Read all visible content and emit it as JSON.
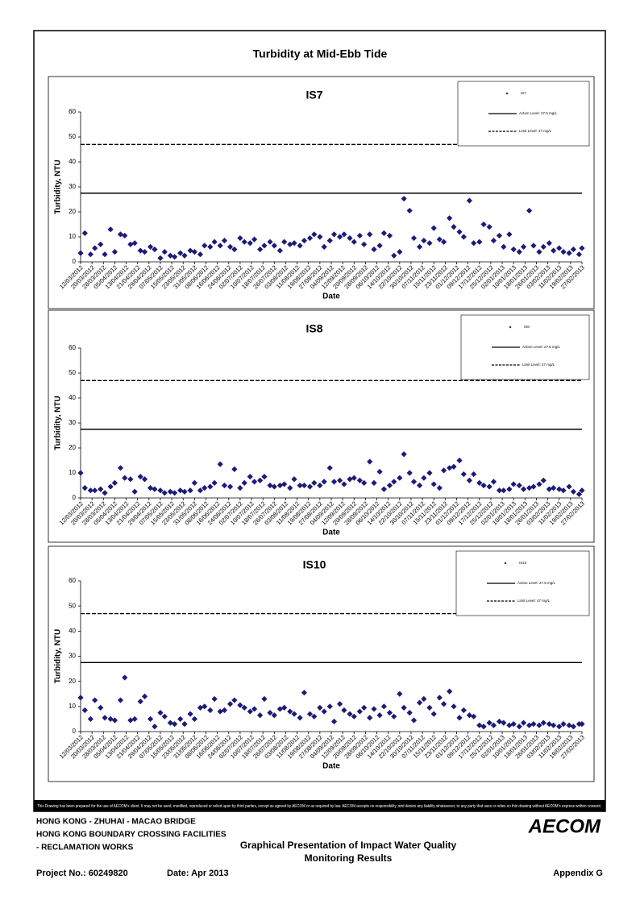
{
  "document": {
    "title": "Turbidity at Mid-Ebb Tide",
    "disclaimer": "This Drawing has been prepared for the use of AECOM's client. It may not be used, modified, reproduced or relied upon by third parties, except as agreed by AECOM or as required by law. AECOM accepts no responsibility, and denies any liability whatsoever, to any party that uses or relies on this drawing without AECOM's express written consent.",
    "project_lines": [
      "HONG KONG - ZHUHAI - MACAO BRIDGE",
      "HONG KONG BOUNDARY CROSSING FACILITIES",
      "- RECLAMATION WORKS"
    ],
    "description": [
      "Graphical Presentation of Impact Water Quality",
      "Monitoring Results"
    ],
    "project_no": "Project No.: 60249820",
    "date": "Date: Apr 2013",
    "appendix": "Appendix G",
    "logo": "AECOM"
  },
  "chart_data": [
    {
      "type": "scatter",
      "title": "IS7",
      "x_label": "Date",
      "y_label": "Turbidity, NTU",
      "xlim": [
        "12/03/2012",
        "27/02/2013"
      ],
      "ylim": [
        0,
        60
      ],
      "yticks": [
        0,
        10,
        20,
        30,
        40,
        50,
        60
      ],
      "xticks": [
        "12/03/2012",
        "20/03/2012",
        "28/03/2012",
        "05/04/2012",
        "13/04/2012",
        "21/04/2012",
        "29/04/2012",
        "07/05/2012",
        "15/05/2012",
        "23/05/2012",
        "31/05/2012",
        "08/06/2012",
        "16/06/2012",
        "24/06/2012",
        "02/07/2012",
        "10/07/2012",
        "18/07/2012",
        "26/07/2012",
        "03/08/2012",
        "11/08/2012",
        "19/08/2012",
        "27/08/2012",
        "04/09/2012",
        "12/09/2012",
        "20/09/2012",
        "28/09/2012",
        "06/10/2012",
        "14/10/2012",
        "22/10/2012",
        "30/10/2012",
        "07/11/2012",
        "15/11/2012",
        "23/11/2012",
        "01/12/2012",
        "09/12/2012",
        "17/12/2012",
        "25/12/2012",
        "02/01/2013",
        "10/01/2013",
        "18/01/2013",
        "26/01/2013",
        "03/02/2013",
        "11/02/2013",
        "19/02/2013",
        "27/02/2013"
      ],
      "x": [
        "12/03/2012",
        "15/03/2012",
        "19/03/2012",
        "22/03/2012",
        "26/03/2012",
        "29/03/2012",
        "02/04/2012",
        "05/04/2012",
        "09/04/2012",
        "12/04/2012",
        "16/04/2012",
        "19/04/2012",
        "23/04/2012",
        "26/04/2012",
        "30/04/2012",
        "03/05/2012",
        "07/05/2012",
        "10/05/2012",
        "14/05/2012",
        "17/05/2012",
        "21/05/2012",
        "24/05/2012",
        "28/05/2012",
        "31/05/2012",
        "04/06/2012",
        "07/06/2012",
        "11/06/2012",
        "14/06/2012",
        "18/06/2012",
        "21/06/2012",
        "25/06/2012",
        "28/06/2012",
        "02/07/2012",
        "05/07/2012",
        "09/07/2012",
        "12/07/2012",
        "16/07/2012",
        "19/07/2012",
        "23/07/2012",
        "26/07/2012",
        "30/07/2012",
        "02/08/2012",
        "06/08/2012",
        "09/08/2012",
        "13/08/2012",
        "16/08/2012",
        "20/08/2012",
        "23/08/2012",
        "27/08/2012",
        "30/08/2012",
        "03/09/2012",
        "06/09/2012",
        "10/09/2012",
        "13/09/2012",
        "17/09/2012",
        "20/09/2012",
        "24/09/2012",
        "27/09/2012",
        "01/10/2012",
        "04/10/2012",
        "08/10/2012",
        "11/10/2012",
        "15/10/2012",
        "18/10/2012",
        "22/10/2012",
        "25/10/2012",
        "29/10/2012",
        "01/11/2012",
        "05/11/2012",
        "08/11/2012",
        "12/11/2012",
        "15/11/2012",
        "19/11/2012",
        "22/11/2012",
        "26/11/2012",
        "29/11/2012",
        "03/12/2012",
        "06/12/2012",
        "10/12/2012",
        "13/12/2012",
        "17/12/2012",
        "20/12/2012",
        "24/12/2012",
        "27/12/2012",
        "31/12/2012",
        "03/01/2013",
        "07/01/2013",
        "10/01/2013",
        "14/01/2013",
        "17/01/2013",
        "21/01/2013",
        "24/01/2013",
        "28/01/2013",
        "31/01/2013",
        "04/02/2013",
        "07/02/2013",
        "11/02/2013",
        "14/02/2013",
        "18/02/2013",
        "21/02/2013",
        "25/02/2013",
        "27/02/2013"
      ],
      "series": [
        {
          "name": "IS7",
          "color": "#1c1c78",
          "values": [
            3.5,
            11.5,
            3,
            5.5,
            7,
            3,
            13,
            4,
            11,
            10.5,
            7,
            7.5,
            4.5,
            4,
            6,
            5,
            1.5,
            4,
            2.5,
            2,
            3.5,
            2.5,
            4.5,
            4,
            3,
            6.5,
            6,
            8,
            6.5,
            8.5,
            6,
            5,
            9.5,
            8,
            7.5,
            9,
            5,
            6.5,
            8,
            6.5,
            4.5,
            8,
            7,
            7.5,
            6.5,
            8.5,
            9.5,
            11,
            10,
            6,
            8.5,
            11,
            10,
            11,
            9.5,
            8,
            10.5,
            7,
            11,
            5,
            6.5,
            11.5,
            10.5,
            2.5,
            4,
            25.3,
            20.5,
            9.5,
            6,
            8.5,
            7.5,
            13.5,
            9,
            8,
            17.5,
            14,
            12,
            10,
            24.5,
            7.5,
            8,
            15,
            14,
            8.5,
            10.5,
            6,
            11,
            5,
            4,
            6,
            20.5,
            6.5,
            4,
            6,
            7.5,
            4.5,
            5.5,
            4,
            3.5,
            5,
            3,
            5.5
          ]
        }
      ],
      "reference_lines": [
        {
          "name": "Action Level: 27.5 mg/L",
          "value": 27.5,
          "style": "solid"
        },
        {
          "name": "Limit Level: 47 mg/L",
          "value": 47,
          "style": "dashed"
        }
      ]
    },
    {
      "type": "scatter",
      "title": "IS8",
      "x_label": "Date",
      "y_label": "Turbidity, NTU",
      "xlim": [
        "12/03/2012",
        "27/02/2013"
      ],
      "ylim": [
        0,
        60
      ],
      "yticks": [
        0,
        10,
        20,
        30,
        40,
        50,
        60
      ],
      "xticks": [
        "12/03/2012",
        "20/03/2012",
        "28/03/2012",
        "05/04/2012",
        "13/04/2012",
        "21/04/2012",
        "29/04/2012",
        "07/05/2012",
        "15/05/2012",
        "23/05/2012",
        "31/05/2012",
        "08/06/2012",
        "16/06/2012",
        "24/06/2012",
        "02/07/2012",
        "10/07/2012",
        "18/07/2012",
        "26/07/2012",
        "03/08/2012",
        "11/08/2012",
        "19/08/2012",
        "27/08/2012",
        "04/09/2012",
        "12/09/2012",
        "20/09/2012",
        "28/09/2012",
        "06/10/2012",
        "14/10/2012",
        "22/10/2012",
        "30/10/2012",
        "07/11/2012",
        "15/11/2012",
        "23/11/2012",
        "01/12/2012",
        "09/12/2012",
        "17/12/2012",
        "25/12/2012",
        "02/01/2013",
        "10/01/2013",
        "18/01/2013",
        "26/01/2013",
        "03/02/2013",
        "11/02/2013",
        "19/02/2013",
        "27/02/2013"
      ],
      "x": [
        "12/03/2012",
        "15/03/2012",
        "19/03/2012",
        "22/03/2012",
        "26/03/2012",
        "29/03/2012",
        "02/04/2012",
        "05/04/2012",
        "09/04/2012",
        "12/04/2012",
        "16/04/2012",
        "19/04/2012",
        "23/04/2012",
        "26/04/2012",
        "30/04/2012",
        "03/05/2012",
        "07/05/2012",
        "10/05/2012",
        "14/05/2012",
        "17/05/2012",
        "21/05/2012",
        "24/05/2012",
        "28/05/2012",
        "31/05/2012",
        "04/06/2012",
        "07/06/2012",
        "11/06/2012",
        "14/06/2012",
        "18/06/2012",
        "21/06/2012",
        "25/06/2012",
        "28/06/2012",
        "02/07/2012",
        "05/07/2012",
        "09/07/2012",
        "12/07/2012",
        "16/07/2012",
        "19/07/2012",
        "23/07/2012",
        "26/07/2012",
        "30/07/2012",
        "02/08/2012",
        "06/08/2012",
        "09/08/2012",
        "13/08/2012",
        "16/08/2012",
        "20/08/2012",
        "23/08/2012",
        "27/08/2012",
        "30/08/2012",
        "03/09/2012",
        "06/09/2012",
        "10/09/2012",
        "13/09/2012",
        "17/09/2012",
        "20/09/2012",
        "24/09/2012",
        "27/09/2012",
        "01/10/2012",
        "04/10/2012",
        "08/10/2012",
        "11/10/2012",
        "15/10/2012",
        "18/10/2012",
        "22/10/2012",
        "25/10/2012",
        "29/10/2012",
        "01/11/2012",
        "05/11/2012",
        "08/11/2012",
        "12/11/2012",
        "15/11/2012",
        "19/11/2012",
        "22/11/2012",
        "26/11/2012",
        "29/11/2012",
        "03/12/2012",
        "06/12/2012",
        "10/12/2012",
        "13/12/2012",
        "17/12/2012",
        "20/12/2012",
        "24/12/2012",
        "27/12/2012",
        "31/12/2012",
        "03/01/2013",
        "07/01/2013",
        "10/01/2013",
        "14/01/2013",
        "17/01/2013",
        "21/01/2013",
        "24/01/2013",
        "28/01/2013",
        "31/01/2013",
        "04/02/2013",
        "07/02/2013",
        "11/02/2013",
        "14/02/2013",
        "18/02/2013",
        "21/02/2013",
        "25/02/2013",
        "27/02/2013"
      ],
      "series": [
        {
          "name": "IS8",
          "color": "#1c1c78",
          "values": [
            10,
            4,
            3,
            3,
            3.5,
            2,
            4.5,
            6,
            12,
            8,
            7.5,
            2.5,
            8.5,
            7.5,
            4,
            3.5,
            3,
            2,
            2.5,
            2,
            3,
            2.5,
            3,
            6,
            3,
            4,
            4.5,
            6,
            13.5,
            5,
            4.5,
            11.5,
            4,
            6,
            8.5,
            6.5,
            7,
            8.5,
            5,
            4.5,
            5,
            5.5,
            4,
            7.5,
            5,
            5,
            4.5,
            6,
            5,
            6.5,
            12,
            6.5,
            7,
            5.5,
            7.5,
            8,
            7,
            6,
            14.5,
            6,
            10.5,
            3.5,
            5,
            6.5,
            8,
            17.5,
            10,
            6.5,
            5,
            8,
            10,
            5.5,
            4,
            11,
            12,
            12.5,
            15,
            9.5,
            7,
            9.5,
            6,
            5,
            4.5,
            6.5,
            3,
            3,
            3.5,
            5.5,
            5,
            3.5,
            4,
            4.5,
            5.5,
            7,
            3.5,
            4,
            3.5,
            3,
            4.5,
            2.5,
            1.5,
            3
          ]
        }
      ],
      "reference_lines": [
        {
          "name": "Action Level: 27.5 mg/L",
          "value": 27.5,
          "style": "solid"
        },
        {
          "name": "Limit Level: 47 mg/L",
          "value": 47,
          "style": "dashed"
        }
      ]
    },
    {
      "type": "scatter",
      "title": "IS10",
      "x_label": "Date",
      "y_label": "Turbidity, NTU",
      "xlim": [
        "12/03/2012",
        "27/02/2013"
      ],
      "ylim": [
        0,
        60
      ],
      "yticks": [
        0,
        10,
        20,
        30,
        40,
        50,
        60
      ],
      "xticks": [
        "12/03/2012",
        "20/03/2012",
        "28/03/2012",
        "05/04/2012",
        "13/04/2012",
        "21/04/2012",
        "29/04/2012",
        "07/05/2012",
        "15/05/2012",
        "23/05/2012",
        "31/05/2012",
        "08/06/2012",
        "16/06/2012",
        "24/06/2012",
        "02/07/2012",
        "10/07/2012",
        "18/07/2012",
        "26/07/2012",
        "03/08/2012",
        "11/08/2012",
        "19/08/2012",
        "27/08/2012",
        "04/09/2012",
        "12/09/2012",
        "20/09/2012",
        "28/09/2012",
        "06/10/2012",
        "14/10/2012",
        "22/10/2012",
        "30/10/2012",
        "07/11/2012",
        "15/11/2012",
        "23/11/2012",
        "01/12/2012",
        "09/12/2012",
        "17/12/2012",
        "25/12/2012",
        "02/01/2013",
        "10/01/2013",
        "18/01/2013",
        "26/01/2013",
        "03/02/2013",
        "11/02/2013",
        "19/02/2013",
        "27/02/2013"
      ],
      "x": [
        "12/03/2012",
        "15/03/2012",
        "19/03/2012",
        "22/03/2012",
        "26/03/2012",
        "29/03/2012",
        "02/04/2012",
        "05/04/2012",
        "09/04/2012",
        "12/04/2012",
        "16/04/2012",
        "19/04/2012",
        "23/04/2012",
        "26/04/2012",
        "30/04/2012",
        "03/05/2012",
        "07/05/2012",
        "10/05/2012",
        "14/05/2012",
        "17/05/2012",
        "21/05/2012",
        "24/05/2012",
        "28/05/2012",
        "31/05/2012",
        "04/06/2012",
        "07/06/2012",
        "11/06/2012",
        "14/06/2012",
        "18/06/2012",
        "21/06/2012",
        "25/06/2012",
        "28/06/2012",
        "02/07/2012",
        "05/07/2012",
        "09/07/2012",
        "12/07/2012",
        "16/07/2012",
        "19/07/2012",
        "23/07/2012",
        "26/07/2012",
        "30/07/2012",
        "02/08/2012",
        "06/08/2012",
        "09/08/2012",
        "13/08/2012",
        "16/08/2012",
        "20/08/2012",
        "23/08/2012",
        "27/08/2012",
        "30/08/2012",
        "03/09/2012",
        "06/09/2012",
        "10/09/2012",
        "13/09/2012",
        "17/09/2012",
        "20/09/2012",
        "24/09/2012",
        "27/09/2012",
        "01/10/2012",
        "04/10/2012",
        "08/10/2012",
        "11/10/2012",
        "15/10/2012",
        "18/10/2012",
        "22/10/2012",
        "25/10/2012",
        "29/10/2012",
        "01/11/2012",
        "05/11/2012",
        "08/11/2012",
        "12/11/2012",
        "15/11/2012",
        "19/11/2012",
        "22/11/2012",
        "26/11/2012",
        "29/11/2012",
        "03/12/2012",
        "06/12/2012",
        "10/12/2012",
        "13/12/2012",
        "17/12/2012",
        "20/12/2012",
        "24/12/2012",
        "27/12/2012",
        "31/12/2012",
        "03/01/2013",
        "07/01/2013",
        "10/01/2013",
        "14/01/2013",
        "17/01/2013",
        "21/01/2013",
        "24/01/2013",
        "28/01/2013",
        "31/01/2013",
        "04/02/2013",
        "07/02/2013",
        "11/02/2013",
        "14/02/2013",
        "18/02/2013",
        "21/02/2013",
        "25/02/2013",
        "27/02/2013"
      ],
      "series": [
        {
          "name": "IS10",
          "color": "#1c1c78",
          "values": [
            13.5,
            8.5,
            5,
            12.5,
            9.5,
            5.5,
            5,
            4.5,
            12.5,
            21.5,
            4.5,
            5,
            12,
            14,
            5,
            2,
            7.5,
            6,
            3.5,
            3,
            5,
            3,
            7,
            5,
            9.5,
            10,
            8.5,
            13,
            8,
            8.5,
            11,
            12.5,
            10.5,
            9.5,
            8,
            9,
            6.5,
            13,
            7.5,
            6.5,
            9,
            9.5,
            8,
            7,
            5.5,
            15.5,
            7,
            6,
            9.5,
            8,
            10,
            4,
            11,
            8.5,
            7,
            6,
            8,
            9.5,
            5.5,
            9,
            6.5,
            10,
            7.5,
            6,
            15,
            9.5,
            7.5,
            4.5,
            11.5,
            13,
            9.5,
            7,
            13.5,
            11,
            16,
            10,
            5.5,
            8.5,
            6.5,
            6,
            2.5,
            2,
            3.5,
            2.5,
            4,
            3.5,
            2.5,
            3,
            2,
            3.5,
            2.5,
            3,
            2.5,
            3.5,
            3,
            2.5,
            2,
            3,
            2.5,
            2,
            3,
            3
          ]
        }
      ],
      "reference_lines": [
        {
          "name": "Action Level: 27.5 mg/L",
          "value": 27.5,
          "style": "solid"
        },
        {
          "name": "Limit Level: 47 mg/L",
          "value": 47,
          "style": "dashed"
        }
      ]
    }
  ]
}
